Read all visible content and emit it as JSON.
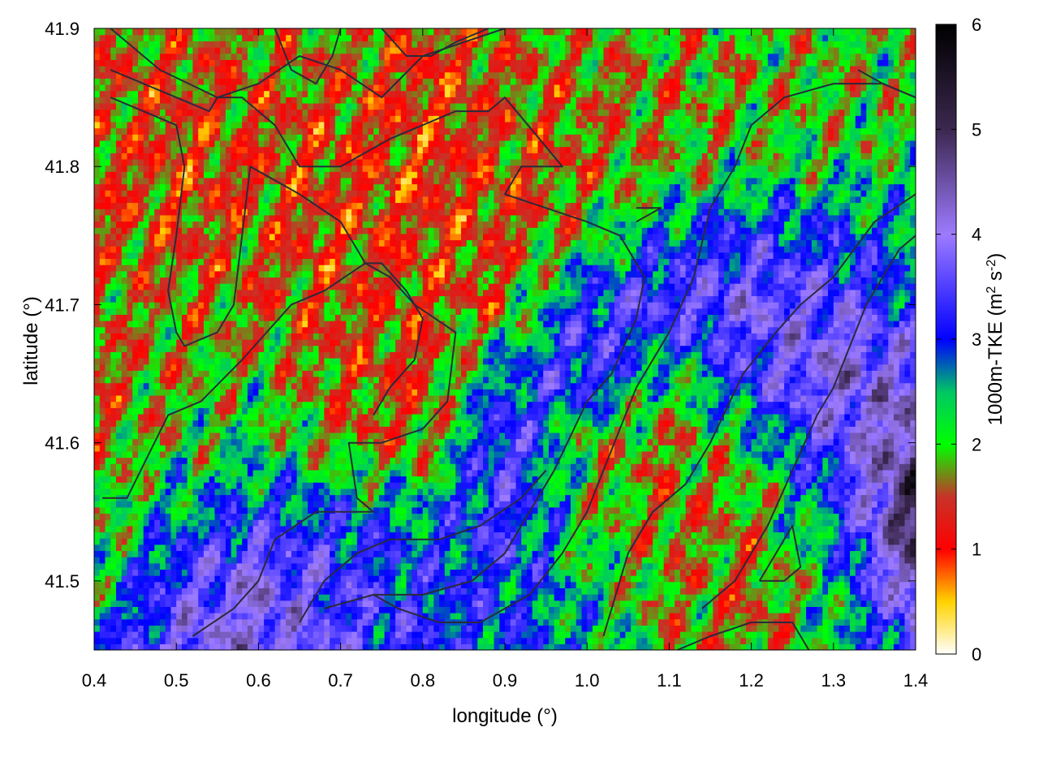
{
  "chart_data": {
    "type": "heatmap",
    "title": "",
    "xlabel": "longitude (°)",
    "ylabel": "latitude (°)",
    "colorbar_label_parts": [
      "1000m-TKE (m",
      "2",
      " s",
      "-2",
      ")"
    ],
    "xlim": [
      0.4,
      1.4
    ],
    "ylim": [
      41.45,
      41.9
    ],
    "x_ticks": [
      0.4,
      0.5,
      0.6,
      0.7,
      0.8,
      0.9,
      1.0,
      1.1,
      1.2,
      1.3,
      1.4
    ],
    "x_tick_labels": [
      "0.4",
      "0.5",
      "0.6",
      "0.7",
      "0.8",
      "0.9",
      "1.0",
      "1.1",
      "1.2",
      "1.3",
      "1.4"
    ],
    "y_ticks": [
      41.5,
      41.6,
      41.7,
      41.8,
      41.9
    ],
    "y_tick_labels": [
      "41.5",
      "41.6",
      "41.7",
      "41.8",
      "41.9"
    ],
    "colorbar_range": [
      0,
      6
    ],
    "colorbar_ticks": [
      0,
      1,
      2,
      3,
      4,
      5,
      6
    ],
    "colorbar_tick_labels": [
      "0",
      "1",
      "2",
      "3",
      "4",
      "5",
      "6"
    ],
    "colorscale": [
      {
        "v": 0.0,
        "color": "#ffffff"
      },
      {
        "v": 0.5,
        "color": "#ffd400"
      },
      {
        "v": 1.0,
        "color": "#ff0000"
      },
      {
        "v": 1.5,
        "color": "#c83228"
      },
      {
        "v": 2.0,
        "color": "#00ff00"
      },
      {
        "v": 2.5,
        "color": "#00c864"
      },
      {
        "v": 3.0,
        "color": "#0000ff"
      },
      {
        "v": 4.0,
        "color": "#9d7bff"
      },
      {
        "v": 5.0,
        "color": "#3c2850"
      },
      {
        "v": 6.0,
        "color": "#000000"
      }
    ],
    "field_description_grid": {
      "lon": [
        0.4,
        0.5,
        0.6,
        0.7,
        0.8,
        0.9,
        1.0,
        1.1,
        1.2,
        1.3,
        1.4
      ],
      "lat": [
        41.45,
        41.5,
        41.55,
        41.6,
        41.65,
        41.7,
        41.75,
        41.8,
        41.85,
        41.9
      ],
      "values": [
        [
          2.8,
          3.8,
          4.1,
          3.5,
          3.2,
          2.9,
          2.6,
          1.8,
          1.6,
          2.2,
          3.4
        ],
        [
          2.2,
          3.4,
          4.0,
          3.4,
          3.0,
          3.1,
          2.3,
          1.7,
          1.6,
          2.4,
          4.6
        ],
        [
          1.8,
          2.6,
          3.0,
          2.9,
          2.6,
          3.4,
          2.0,
          1.6,
          1.7,
          2.9,
          5.2
        ],
        [
          1.6,
          2.0,
          2.3,
          1.7,
          1.5,
          3.6,
          1.9,
          1.6,
          2.3,
          3.6,
          4.8
        ],
        [
          1.5,
          1.8,
          1.9,
          1.5,
          1.4,
          2.8,
          3.5,
          2.2,
          3.4,
          4.2,
          3.9
        ],
        [
          1.6,
          1.7,
          1.6,
          1.4,
          1.4,
          1.6,
          3.2,
          3.6,
          3.8,
          3.6,
          3.0
        ],
        [
          1.5,
          1.4,
          1.5,
          1.3,
          1.3,
          1.4,
          2.0,
          2.8,
          3.2,
          3.0,
          2.6
        ],
        [
          1.4,
          1.3,
          1.4,
          1.3,
          1.2,
          1.4,
          1.6,
          1.9,
          2.1,
          2.2,
          2.2
        ],
        [
          1.5,
          1.4,
          1.5,
          1.5,
          1.2,
          1.5,
          1.6,
          1.7,
          1.8,
          1.9,
          2.0
        ],
        [
          1.7,
          1.6,
          1.7,
          1.8,
          1.3,
          1.6,
          1.8,
          1.9,
          1.9,
          2.0,
          2.1
        ]
      ]
    },
    "contour_lines": [
      [
        [
          0.42,
          41.87
        ],
        [
          0.5,
          41.85
        ],
        [
          0.54,
          41.84
        ],
        [
          0.55,
          41.85
        ],
        [
          0.58,
          41.85
        ],
        [
          0.62,
          41.83
        ],
        [
          0.65,
          41.8
        ],
        [
          0.7,
          41.8
        ],
        [
          0.76,
          41.82
        ],
        [
          0.84,
          41.84
        ],
        [
          0.88,
          41.84
        ],
        [
          0.9,
          41.85
        ],
        [
          0.97,
          41.8
        ],
        [
          0.92,
          41.8
        ],
        [
          0.9,
          41.78
        ],
        [
          1.0,
          41.76
        ],
        [
          1.04,
          41.75
        ],
        [
          1.07,
          41.72
        ],
        [
          1.06,
          41.69
        ],
        [
          1.03,
          41.65
        ],
        [
          1.0,
          41.63
        ],
        [
          0.96,
          41.58
        ],
        [
          0.9,
          41.52
        ],
        [
          0.86,
          41.5
        ],
        [
          0.8,
          41.49
        ],
        [
          0.74,
          41.49
        ],
        [
          0.68,
          41.48
        ]
      ],
      [
        [
          0.42,
          41.85
        ],
        [
          0.46,
          41.84
        ],
        [
          0.5,
          41.83
        ],
        [
          0.51,
          41.8
        ],
        [
          0.5,
          41.75
        ],
        [
          0.49,
          41.71
        ],
        [
          0.5,
          41.68
        ],
        [
          0.51,
          41.67
        ],
        [
          0.55,
          41.68
        ],
        [
          0.57,
          41.7
        ],
        [
          0.58,
          41.75
        ],
        [
          0.59,
          41.8
        ],
        [
          0.65,
          41.78
        ],
        [
          0.7,
          41.76
        ],
        [
          0.73,
          41.73
        ],
        [
          0.76,
          41.72
        ],
        [
          0.79,
          41.7
        ],
        [
          0.84,
          41.68
        ],
        [
          0.83,
          41.63
        ],
        [
          0.8,
          41.61
        ],
        [
          0.75,
          41.6
        ],
        [
          0.71,
          41.6
        ],
        [
          0.72,
          41.56
        ],
        [
          0.74,
          41.55
        ],
        [
          0.67,
          41.55
        ],
        [
          0.62,
          41.53
        ],
        [
          0.6,
          41.5
        ],
        [
          0.57,
          41.48
        ],
        [
          0.52,
          41.46
        ]
      ],
      [
        [
          0.41,
          41.56
        ],
        [
          0.44,
          41.56
        ],
        [
          0.49,
          41.62
        ],
        [
          0.53,
          41.63
        ],
        [
          0.58,
          41.66
        ],
        [
          0.61,
          41.68
        ],
        [
          0.64,
          41.7
        ],
        [
          0.68,
          41.71
        ],
        [
          0.73,
          41.73
        ],
        [
          0.75,
          41.73
        ],
        [
          0.78,
          41.71
        ],
        [
          0.8,
          41.69
        ]
      ],
      [
        [
          0.42,
          41.9
        ],
        [
          0.48,
          41.87
        ],
        [
          0.55,
          41.85
        ],
        [
          0.6,
          41.86
        ],
        [
          0.65,
          41.88
        ],
        [
          0.7,
          41.87
        ],
        [
          0.75,
          41.85
        ],
        [
          0.8,
          41.88
        ],
        [
          0.9,
          41.9
        ]
      ],
      [
        [
          0.62,
          41.9
        ],
        [
          0.64,
          41.87
        ],
        [
          0.67,
          41.86
        ],
        [
          0.69,
          41.88
        ],
        [
          0.7,
          41.9
        ]
      ],
      [
        [
          0.75,
          41.9
        ],
        [
          0.78,
          41.88
        ],
        [
          0.81,
          41.88
        ],
        [
          0.84,
          41.89
        ],
        [
          0.88,
          41.9
        ]
      ],
      [
        [
          1.02,
          41.46
        ],
        [
          1.05,
          41.52
        ],
        [
          1.08,
          41.55
        ],
        [
          1.12,
          41.57
        ],
        [
          1.15,
          41.6
        ],
        [
          1.19,
          41.65
        ],
        [
          1.23,
          41.68
        ],
        [
          1.26,
          41.7
        ],
        [
          1.3,
          41.72
        ],
        [
          1.35,
          41.76
        ],
        [
          1.4,
          41.78
        ]
      ],
      [
        [
          1.14,
          41.48
        ],
        [
          1.18,
          41.5
        ],
        [
          1.22,
          41.54
        ],
        [
          1.25,
          41.58
        ],
        [
          1.28,
          41.62
        ],
        [
          1.3,
          41.64
        ],
        [
          1.34,
          41.7
        ],
        [
          1.38,
          41.74
        ],
        [
          1.4,
          41.75
        ]
      ],
      [
        [
          0.8,
          41.69
        ],
        [
          0.79,
          41.66
        ],
        [
          0.76,
          41.64
        ],
        [
          0.74,
          41.62
        ]
      ],
      [
        [
          0.74,
          41.49
        ],
        [
          0.77,
          41.48
        ],
        [
          0.82,
          41.47
        ],
        [
          0.87,
          41.47
        ],
        [
          0.93,
          41.49
        ],
        [
          0.97,
          41.52
        ],
        [
          1.0,
          41.55
        ],
        [
          1.02,
          41.58
        ],
        [
          1.06,
          41.64
        ],
        [
          1.1,
          41.68
        ],
        [
          1.13,
          41.72
        ],
        [
          1.15,
          41.77
        ],
        [
          1.18,
          41.8
        ],
        [
          1.2,
          41.83
        ],
        [
          1.24,
          41.85
        ],
        [
          1.3,
          41.86
        ],
        [
          1.36,
          41.86
        ],
        [
          1.4,
          41.85
        ]
      ],
      [
        [
          1.21,
          41.5
        ],
        [
          1.24,
          41.5
        ],
        [
          1.26,
          41.51
        ],
        [
          1.25,
          41.54
        ],
        [
          1.23,
          41.52
        ],
        [
          1.21,
          41.5
        ]
      ],
      [
        [
          1.11,
          41.45
        ],
        [
          1.15,
          41.46
        ],
        [
          1.2,
          41.47
        ],
        [
          1.25,
          41.47
        ],
        [
          1.27,
          41.45
        ]
      ],
      [
        [
          1.06,
          41.77
        ],
        [
          1.09,
          41.77
        ],
        [
          1.06,
          41.76
        ]
      ],
      [
        [
          0.65,
          41.47
        ],
        [
          0.68,
          41.5
        ],
        [
          0.72,
          41.52
        ],
        [
          0.76,
          41.53
        ],
        [
          0.82,
          41.53
        ],
        [
          0.87,
          41.54
        ],
        [
          0.92,
          41.56
        ],
        [
          0.95,
          41.58
        ]
      ],
      [
        [
          1.33,
          41.87
        ],
        [
          1.36,
          41.86
        ],
        [
          1.4,
          41.85
        ]
      ]
    ]
  }
}
